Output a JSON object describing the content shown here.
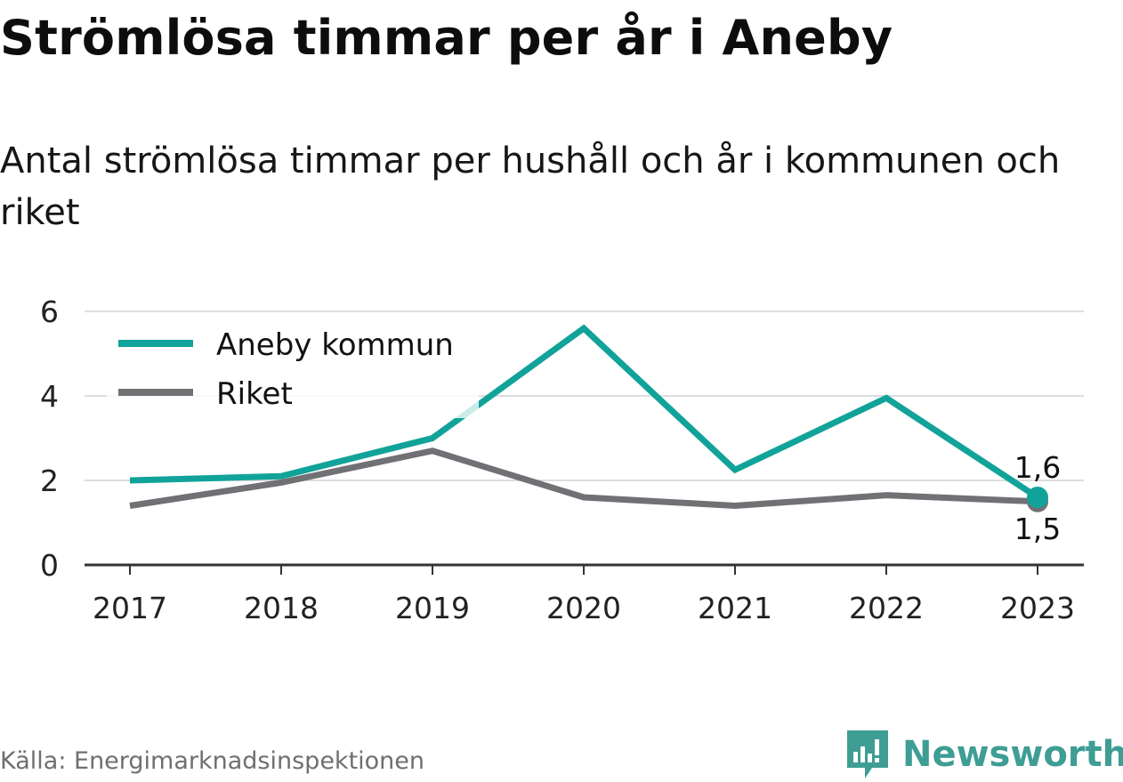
{
  "header": {
    "title": "Strömlösa timmar per år i Aneby",
    "subtitle": "Antal strömlösa timmar per hushåll och år i kommunen och riket"
  },
  "footer": {
    "source": "Källa: Energimarknadsinspektionen",
    "brand": "Newsworthy"
  },
  "colors": {
    "aneby": "#11a39a",
    "riket": "#717075",
    "grid": "#dddddd",
    "axis": "#333333",
    "brand": "#3e9d94"
  },
  "chart_data": {
    "type": "line",
    "title": "Strömlösa timmar per år i Aneby",
    "subtitle": "Antal strömlösa timmar per hushåll och år i kommunen och riket",
    "xlabel": "",
    "ylabel": "",
    "categories": [
      "2017",
      "2018",
      "2019",
      "2020",
      "2021",
      "2022",
      "2023"
    ],
    "ylim": [
      0,
      6
    ],
    "yticks": [
      "0",
      "2",
      "4",
      "6"
    ],
    "grid": true,
    "legend_position": "top-left",
    "series": [
      {
        "name": "Aneby kommun",
        "color": "#11a39a",
        "values": [
          2.0,
          2.1,
          3.0,
          5.6,
          2.25,
          3.95,
          1.6
        ],
        "end_label": "1,6"
      },
      {
        "name": "Riket",
        "color": "#717075",
        "values": [
          1.4,
          1.95,
          2.7,
          1.6,
          1.4,
          1.65,
          1.5
        ],
        "end_label": "1,5"
      }
    ]
  }
}
